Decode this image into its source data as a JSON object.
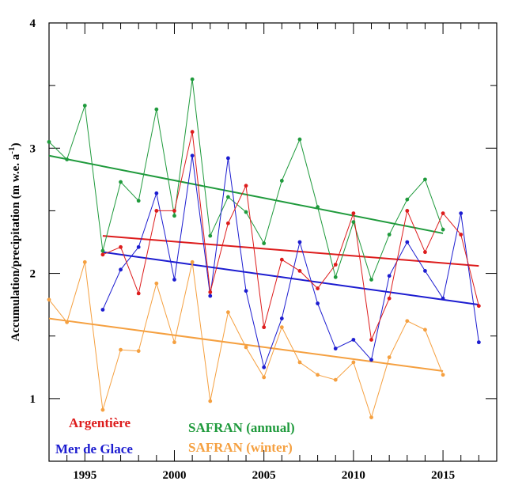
{
  "chart_data": {
    "type": "line",
    "title": "",
    "xlabel": "",
    "ylabel": "Accumulation/precipitation (m w.e. a",
    "ylabel_sup": "-1",
    "ylabel_close": ")",
    "xlim": [
      1993,
      2018
    ],
    "ylim": [
      0.5,
      4
    ],
    "x_ticks": [
      1995,
      2000,
      2005,
      2010,
      2015
    ],
    "x_tick_labels": [
      "1995",
      "2000",
      "2005",
      "2010",
      "2015"
    ],
    "y_ticks": [
      1,
      2,
      3,
      4
    ],
    "y_tick_labels": [
      "1",
      "2",
      "3",
      "4"
    ],
    "grid": false,
    "legend_position": "bottom-left",
    "series": [
      {
        "name": "Argentière",
        "color": "#dd1c1c",
        "x": [
          1996,
          1997,
          1998,
          1999,
          2000,
          2001,
          2002,
          2003,
          2004,
          2005,
          2006,
          2007,
          2008,
          2009,
          2010,
          2011,
          2012,
          2013,
          2014,
          2015,
          2016,
          2017
        ],
        "y": [
          2.15,
          2.21,
          1.84,
          2.5,
          2.5,
          3.13,
          1.85,
          2.4,
          2.7,
          1.57,
          2.11,
          2.02,
          1.88,
          2.07,
          2.48,
          1.47,
          1.8,
          2.5,
          2.17,
          2.48,
          2.31,
          1.74
        ],
        "trend": {
          "x": [
            1996,
            2017
          ],
          "y": [
            2.3,
            2.06
          ]
        }
      },
      {
        "name": "Mer de Glace",
        "color": "#1c1cd0",
        "x": [
          1996,
          1997,
          1998,
          1999,
          2000,
          2001,
          2002,
          2003,
          2004,
          2005,
          2006,
          2007,
          2008,
          2009,
          2010,
          2011,
          2012,
          2013,
          2014,
          2015,
          2016,
          2017
        ],
        "y": [
          1.71,
          2.03,
          2.21,
          2.64,
          1.95,
          2.94,
          1.82,
          2.92,
          1.86,
          1.25,
          1.64,
          2.25,
          1.76,
          1.4,
          1.47,
          1.31,
          1.98,
          2.25,
          2.02,
          1.8,
          2.48,
          1.45
        ],
        "trend": {
          "x": [
            1996,
            2017
          ],
          "y": [
            2.17,
            1.75
          ]
        }
      },
      {
        "name": "SAFRAN (annual)",
        "color": "#1f9a3c",
        "x": [
          1993,
          1994,
          1995,
          1996,
          1997,
          1998,
          1999,
          2000,
          2001,
          2002,
          2003,
          2004,
          2005,
          2006,
          2007,
          2008,
          2009,
          2010,
          2011,
          2012,
          2013,
          2014,
          2015
        ],
        "y": [
          3.05,
          2.91,
          3.34,
          2.18,
          2.73,
          2.58,
          3.31,
          2.46,
          3.55,
          2.3,
          2.61,
          2.49,
          2.24,
          2.74,
          3.07,
          2.53,
          1.97,
          2.41,
          1.95,
          2.31,
          2.59,
          2.75,
          2.35
        ],
        "trend": {
          "x": [
            1993,
            2015
          ],
          "y": [
            2.94,
            2.32
          ]
        }
      },
      {
        "name": "SAFRAN (winter)",
        "color": "#f5a040",
        "x": [
          1993,
          1994,
          1995,
          1996,
          1997,
          1998,
          1999,
          2000,
          2001,
          2002,
          2003,
          2004,
          2005,
          2006,
          2007,
          2008,
          2009,
          2010,
          2011,
          2012,
          2013,
          2014,
          2015
        ],
        "y": [
          1.79,
          1.61,
          2.09,
          0.91,
          1.39,
          1.38,
          1.92,
          1.45,
          2.09,
          0.98,
          1.69,
          1.41,
          1.17,
          1.57,
          1.29,
          1.19,
          1.15,
          1.29,
          0.85,
          1.33,
          1.62,
          1.55,
          1.19
        ],
        "trend": {
          "x": [
            1993,
            2015
          ],
          "y": [
            1.64,
            1.22
          ]
        }
      }
    ]
  }
}
